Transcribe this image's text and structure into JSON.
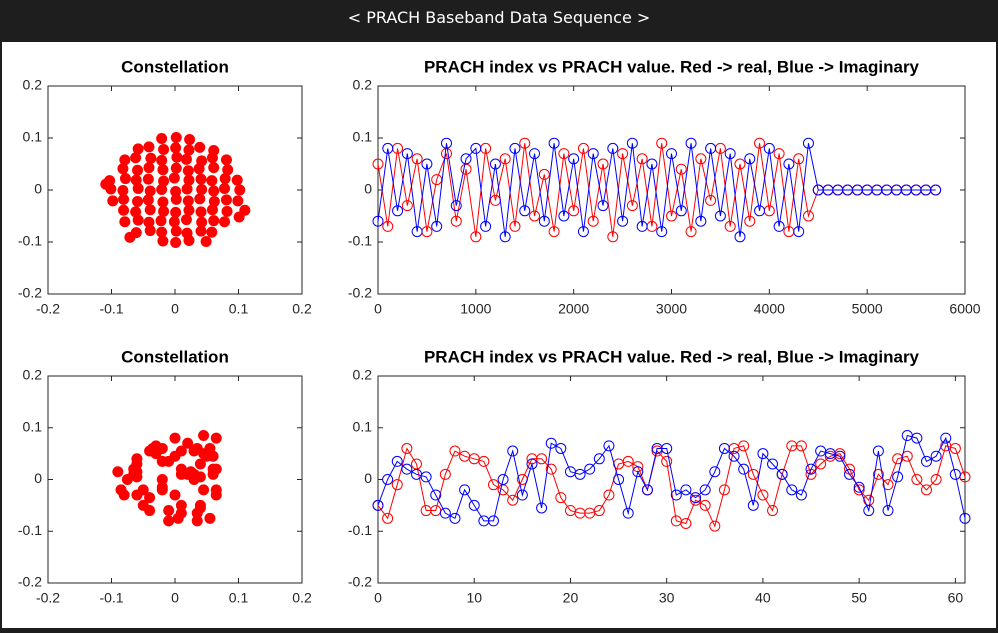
{
  "header": {
    "title": "< PRACH Baseband Data Sequence >"
  },
  "chart_data": [
    {
      "type": "scatter",
      "title": "Constellation",
      "color": "#ff0000",
      "xlim": [
        -0.2,
        0.2
      ],
      "ylim": [
        -0.2,
        0.2
      ],
      "xticks": [
        -0.2,
        -0.1,
        0,
        0.1,
        0.2
      ],
      "yticks": [
        -0.2,
        -0.1,
        0,
        0.1,
        0.2
      ],
      "x": [
        -0.021,
        0.002,
        0.023,
        -0.058,
        -0.041,
        -0.018,
        0.001,
        0.022,
        0.039,
        0.061,
        -0.079,
        -0.062,
        -0.038,
        -0.021,
        0.003,
        0.018,
        0.042,
        0.059,
        0.081,
        -0.082,
        -0.059,
        -0.041,
        -0.019,
        0.002,
        0.021,
        0.038,
        0.061,
        0.083,
        -0.103,
        -0.078,
        -0.061,
        -0.042,
        -0.018,
        -0.001,
        0.022,
        0.041,
        0.058,
        0.079,
        0.098,
        -0.101,
        -0.082,
        -0.058,
        -0.039,
        -0.021,
        0.001,
        0.019,
        0.042,
        0.061,
        0.078,
        0.102,
        -0.098,
        -0.081,
        -0.059,
        -0.042,
        -0.019,
        0.002,
        0.021,
        0.039,
        0.062,
        0.081,
        0.099,
        -0.081,
        -0.062,
        -0.039,
        -0.018,
        0.001,
        0.022,
        0.041,
        0.059,
        0.082,
        -0.079,
        -0.058,
        -0.041,
        -0.022,
        -0.001,
        0.018,
        0.042,
        0.061,
        0.078,
        -0.061,
        -0.039,
        -0.021,
        0.002,
        0.019,
        0.041,
        0.058,
        -0.019,
        0.001,
        0.022,
        0.11,
        0.101,
        -0.109,
        0.049,
        -0.071
      ],
      "y": [
        0.099,
        0.101,
        0.097,
        0.079,
        0.083,
        0.078,
        0.081,
        0.077,
        0.082,
        0.076,
        0.058,
        0.062,
        0.061,
        0.057,
        0.063,
        0.059,
        0.056,
        0.062,
        0.058,
        0.041,
        0.038,
        0.043,
        0.039,
        0.042,
        0.037,
        0.041,
        0.043,
        0.039,
        0.018,
        0.022,
        0.019,
        0.021,
        0.017,
        0.023,
        0.019,
        0.021,
        0.018,
        0.022,
        0.019,
        0.002,
        -0.001,
        0.003,
        -0.002,
        0.001,
        -0.003,
        0.002,
        0.001,
        -0.002,
        0.003,
        0.0,
        -0.021,
        -0.018,
        -0.022,
        -0.019,
        -0.023,
        -0.018,
        -0.021,
        -0.017,
        -0.022,
        -0.019,
        -0.021,
        -0.039,
        -0.042,
        -0.038,
        -0.041,
        -0.043,
        -0.039,
        -0.042,
        -0.038,
        -0.041,
        -0.061,
        -0.058,
        -0.062,
        -0.059,
        -0.061,
        -0.057,
        -0.062,
        -0.059,
        -0.061,
        -0.082,
        -0.078,
        -0.081,
        -0.079,
        -0.083,
        -0.079,
        -0.081,
        -0.098,
        -0.101,
        -0.097,
        -0.039,
        -0.052,
        0.011,
        -0.099,
        -0.091
      ]
    },
    {
      "type": "line",
      "title": "PRACH index vs PRACH value. Red -> real, Blue -> Imaginary",
      "xlim": [
        0,
        6000
      ],
      "ylim": [
        -0.2,
        0.2
      ],
      "xticks": [
        0,
        1000,
        2000,
        3000,
        4000,
        5000,
        6000
      ],
      "yticks": [
        -0.2,
        -0.1,
        0,
        0.1,
        0.2
      ],
      "x": [
        0,
        100,
        200,
        300,
        400,
        500,
        600,
        700,
        800,
        900,
        1000,
        1100,
        1200,
        1300,
        1400,
        1500,
        1600,
        1700,
        1800,
        1900,
        2000,
        2100,
        2200,
        2300,
        2400,
        2500,
        2600,
        2700,
        2800,
        2900,
        3000,
        3100,
        3200,
        3300,
        3400,
        3500,
        3600,
        3700,
        3800,
        3900,
        4000,
        4100,
        4200,
        4300,
        4400,
        4500,
        4600,
        4700,
        4800,
        4900,
        5000,
        5100,
        5200,
        5300,
        5400,
        5500,
        5600,
        5700
      ],
      "series": [
        {
          "color": "#ff0000",
          "values": [
            0.05,
            -0.07,
            0.08,
            -0.03,
            0.06,
            -0.08,
            0.02,
            0.07,
            -0.06,
            0.04,
            -0.09,
            0.08,
            -0.02,
            0.06,
            -0.07,
            0.09,
            -0.05,
            0.03,
            -0.08,
            0.07,
            -0.04,
            0.08,
            -0.06,
            0.05,
            -0.09,
            0.07,
            -0.03,
            0.06,
            -0.07,
            0.09,
            -0.05,
            0.04,
            -0.08,
            0.06,
            -0.02,
            0.08,
            -0.07,
            0.05,
            -0.06,
            0.09,
            -0.04,
            0.07,
            -0.08,
            0.06,
            -0.05,
            0,
            0,
            0,
            0,
            0,
            0,
            0,
            0,
            0,
            0,
            0,
            0,
            0
          ]
        },
        {
          "color": "#0000ff",
          "values": [
            -0.06,
            0.08,
            -0.04,
            0.07,
            -0.08,
            0.05,
            -0.07,
            0.09,
            -0.03,
            0.06,
            0.08,
            -0.07,
            0.05,
            -0.09,
            0.08,
            -0.04,
            0.07,
            -0.06,
            0.09,
            -0.05,
            0.06,
            -0.08,
            0.07,
            -0.03,
            0.08,
            -0.06,
            0.09,
            -0.07,
            0.05,
            -0.08,
            0.07,
            -0.04,
            0.09,
            -0.06,
            0.08,
            -0.05,
            0.07,
            -0.09,
            0.06,
            -0.04,
            0.08,
            -0.07,
            0.05,
            -0.08,
            0.09,
            0,
            0,
            0,
            0,
            0,
            0,
            0,
            0,
            0,
            0,
            0,
            0,
            0
          ]
        }
      ]
    },
    {
      "type": "scatter",
      "title": "Constellation",
      "color": "#ff0000",
      "xlim": [
        -0.2,
        0.2
      ],
      "ylim": [
        -0.2,
        0.2
      ],
      "xticks": [
        -0.2,
        -0.1,
        0,
        0.1,
        0.2
      ],
      "yticks": [
        -0.2,
        -0.1,
        0,
        0.1,
        0.2
      ],
      "x": [
        -0.05,
        -0.075,
        -0.01,
        0.06,
        0.03,
        -0.06,
        -0.06,
        0.01,
        0.055,
        0.045,
        0.04,
        0.035,
        -0.01,
        -0.02,
        -0.04,
        0.0,
        0.04,
        0.04,
        0.02,
        -0.035,
        -0.06,
        -0.065,
        -0.065,
        -0.06,
        -0.03,
        0.03,
        0.035,
        0.025,
        -0.02,
        0.055,
        0.035,
        -0.08,
        -0.085,
        -0.04,
        -0.05,
        -0.09,
        -0.02,
        0.06,
        0.065,
        0.01,
        -0.03,
        -0.06,
        0.01,
        0.065,
        0.065,
        0.01,
        0.03,
        0.045,
        0.05,
        0.02,
        -0.02,
        -0.04,
        0.01,
        -0.01,
        0.04,
        0.045,
        0.0,
        -0.02,
        0.0,
        0.065,
        0.06,
        0.005
      ],
      "y": [
        -0.05,
        0.0,
        0.035,
        0.02,
        0.01,
        0.005,
        -0.03,
        -0.065,
        -0.075,
        -0.02,
        -0.05,
        -0.08,
        -0.08,
        0.0,
        0.055,
        -0.03,
        0.03,
        -0.055,
        0.07,
        0.06,
        0.015,
        0.01,
        0.02,
        0.04,
        0.065,
        0.0,
        -0.065,
        0.015,
        -0.02,
        0.06,
        0.06,
        -0.03,
        -0.02,
        -0.035,
        -0.02,
        0.015,
        0.06,
        0.045,
        0.02,
        -0.05,
        0.05,
        0.03,
        0.01,
        -0.02,
        -0.03,
        0.02,
        0.055,
        0.05,
        0.045,
        0.01,
        -0.015,
        -0.06,
        0.055,
        -0.06,
        0.005,
        0.085,
        0.08,
        0.035,
        0.045,
        0.08,
        0.01,
        -0.075
      ]
    },
    {
      "type": "line",
      "title": "PRACH index vs PRACH value. Red -> real, Blue -> Imaginary",
      "xlim": [
        0,
        61
      ],
      "ylim": [
        -0.2,
        0.2
      ],
      "xticks": [
        0,
        10,
        20,
        30,
        40,
        50,
        60
      ],
      "yticks": [
        -0.2,
        -0.1,
        0,
        0.1,
        0.2
      ],
      "x": [
        0,
        1,
        2,
        3,
        4,
        5,
        6,
        7,
        8,
        9,
        10,
        11,
        12,
        13,
        14,
        15,
        16,
        17,
        18,
        19,
        20,
        21,
        22,
        23,
        24,
        25,
        26,
        27,
        28,
        29,
        30,
        31,
        32,
        33,
        34,
        35,
        36,
        37,
        38,
        39,
        40,
        41,
        42,
        43,
        44,
        45,
        46,
        47,
        48,
        49,
        50,
        51,
        52,
        53,
        54,
        55,
        56,
        57,
        58,
        59,
        60,
        61
      ],
      "series": [
        {
          "color": "#ff0000",
          "values": [
            -0.05,
            -0.075,
            -0.01,
            0.06,
            0.03,
            -0.06,
            -0.06,
            0.01,
            0.055,
            0.045,
            0.04,
            0.035,
            -0.01,
            -0.02,
            -0.04,
            0.0,
            0.04,
            0.04,
            0.02,
            -0.035,
            -0.06,
            -0.065,
            -0.065,
            -0.06,
            -0.03,
            0.03,
            0.035,
            0.025,
            -0.02,
            0.055,
            0.035,
            -0.08,
            -0.085,
            -0.04,
            -0.05,
            -0.09,
            -0.02,
            0.06,
            0.065,
            0.01,
            -0.03,
            -0.06,
            0.01,
            0.065,
            0.065,
            0.01,
            0.03,
            0.045,
            0.05,
            0.02,
            -0.02,
            -0.04,
            0.01,
            -0.01,
            0.04,
            0.045,
            0.0,
            -0.02,
            0.0,
            0.065,
            0.06,
            0.005
          ]
        },
        {
          "color": "#0000ff",
          "values": [
            -0.05,
            0.0,
            0.035,
            0.02,
            0.01,
            0.005,
            -0.03,
            -0.065,
            -0.075,
            -0.02,
            -0.05,
            -0.08,
            -0.08,
            0.0,
            0.055,
            -0.03,
            0.03,
            -0.055,
            0.07,
            0.06,
            0.015,
            0.01,
            0.02,
            0.04,
            0.065,
            0.0,
            -0.065,
            0.015,
            -0.02,
            0.06,
            0.06,
            -0.03,
            -0.02,
            -0.035,
            -0.02,
            0.015,
            0.06,
            0.045,
            0.02,
            -0.05,
            0.05,
            0.03,
            0.01,
            -0.02,
            -0.03,
            0.02,
            0.055,
            0.05,
            0.045,
            0.01,
            -0.015,
            -0.06,
            0.055,
            -0.06,
            0.005,
            0.085,
            0.08,
            0.035,
            0.045,
            0.08,
            0.01,
            -0.075
          ]
        }
      ]
    }
  ]
}
